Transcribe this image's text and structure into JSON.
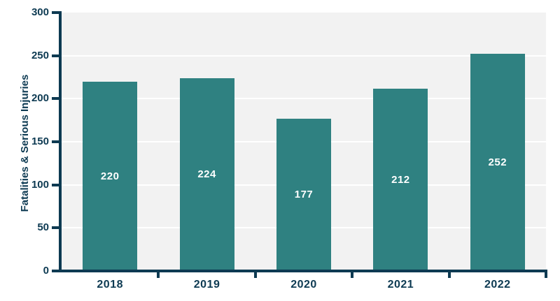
{
  "chart_data": {
    "type": "bar",
    "title": "",
    "xlabel": "",
    "ylabel": "Fatalities & Serious Injuries",
    "categories": [
      "2018",
      "2019",
      "2020",
      "2021",
      "2022"
    ],
    "values": [
      220,
      224,
      177,
      212,
      252
    ],
    "yticks": [
      0,
      50,
      100,
      150,
      200,
      250,
      300
    ],
    "ylim": [
      0,
      300
    ],
    "grid": true,
    "legend": "none",
    "colors": {
      "bar": "#2f8181",
      "bar_value_label": "#ffffff",
      "axis": "#0d3a52",
      "tick_label": "#0d3a52",
      "plot_background": "#f2f2f2",
      "gridline": "#ffffff",
      "page_background": "#ffffff"
    }
  }
}
